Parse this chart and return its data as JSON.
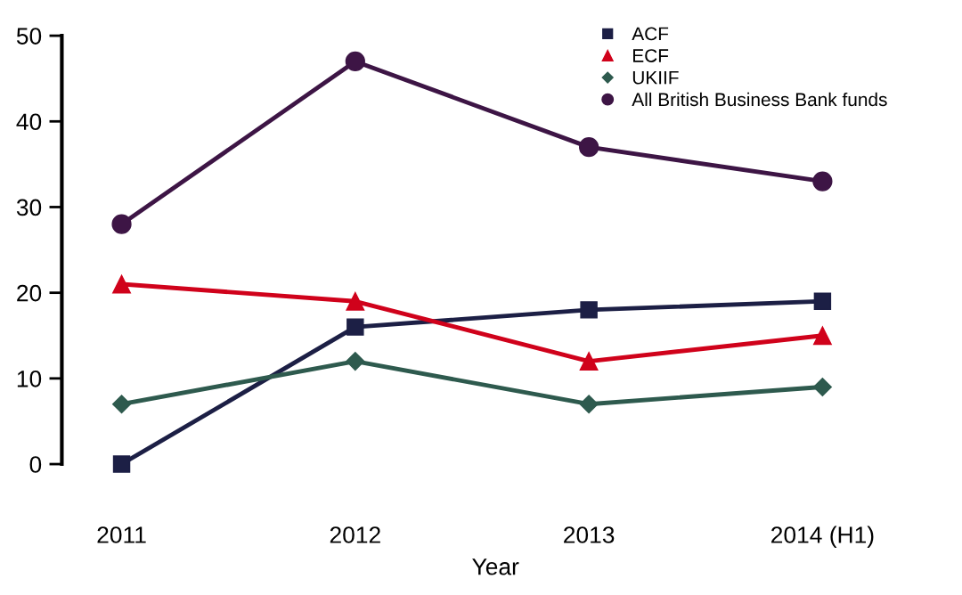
{
  "chart_data": {
    "type": "line",
    "xlabel": "Year",
    "categories": [
      "2011",
      "2012",
      "2013",
      "2014 (H1)"
    ],
    "series": [
      {
        "name": "ACF",
        "color": "#1c1f45",
        "marker": "square",
        "values": [
          0,
          16,
          18,
          19
        ]
      },
      {
        "name": "ECF",
        "color": "#d0021b",
        "marker": "triangle",
        "values": [
          21,
          19,
          12,
          15
        ]
      },
      {
        "name": "UKIIF",
        "color": "#2e5a4e",
        "marker": "diamond",
        "values": [
          7,
          12,
          7,
          9
        ]
      },
      {
        "name": "All British Business Bank funds",
        "color": "#3d1545",
        "marker": "circle",
        "values": [
          28,
          47,
          37,
          33
        ]
      }
    ],
    "ylim": [
      0,
      50
    ],
    "yticks": [
      0,
      10,
      20,
      30,
      40,
      50
    ],
    "grid": false,
    "legend": "top right",
    "line_style": "solid"
  }
}
